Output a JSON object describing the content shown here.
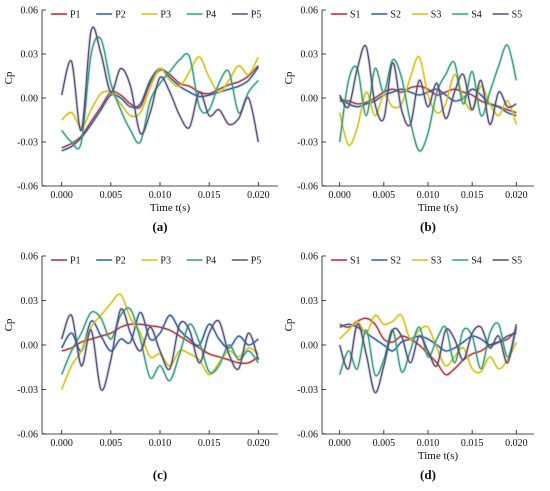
{
  "chart_data": [
    {
      "type": "line",
      "panel": "(a)",
      "xlabel": "Time t(s)",
      "ylabel": "Cp",
      "xlim": [
        -0.002,
        0.022
      ],
      "ylim": [
        -0.06,
        0.06
      ],
      "xticks": [
        "0.000",
        "0.005",
        "0.010",
        "0.015",
        "0.020"
      ],
      "yticks": [
        "0.06",
        "0.03",
        "0.00",
        "-0.03",
        "-0.06"
      ],
      "legend_position": "top",
      "x": [
        0.0,
        0.001,
        0.002,
        0.003,
        0.004,
        0.005,
        0.006,
        0.007,
        0.008,
        0.009,
        0.01,
        0.011,
        0.012,
        0.013,
        0.014,
        0.015,
        0.016,
        0.017,
        0.018,
        0.019,
        0.02
      ],
      "series": [
        {
          "name": "P1",
          "color": "#b5383c",
          "values": [
            -0.034,
            -0.031,
            -0.026,
            -0.016,
            -0.006,
            0.004,
            0.002,
            -0.004,
            -0.006,
            0.01,
            0.019,
            0.016,
            0.01,
            0.008,
            0.004,
            0.003,
            0.006,
            0.009,
            0.011,
            0.015,
            0.022
          ]
        },
        {
          "name": "P2",
          "color": "#2f5fa1",
          "values": [
            -0.036,
            -0.033,
            -0.027,
            -0.018,
            -0.008,
            0.002,
            0.0,
            -0.006,
            -0.004,
            0.012,
            0.02,
            0.014,
            0.008,
            0.004,
            0.001,
            0.002,
            0.004,
            0.006,
            0.008,
            0.012,
            0.021
          ]
        },
        {
          "name": "P3",
          "color": "#d4c21a",
          "values": [
            -0.015,
            -0.01,
            -0.02,
            -0.008,
            0.003,
            0.004,
            -0.004,
            -0.012,
            -0.01,
            0.007,
            0.02,
            0.012,
            0.008,
            0.018,
            0.028,
            0.014,
            0.004,
            0.012,
            0.022,
            0.016,
            0.028
          ]
        },
        {
          "name": "P4",
          "color": "#3a9f7d",
          "values": [
            -0.022,
            -0.03,
            -0.03,
            0.03,
            0.04,
            0.01,
            -0.008,
            -0.022,
            -0.03,
            -0.002,
            0.01,
            0.018,
            0.026,
            0.028,
            -0.006,
            -0.008,
            0.01,
            0.018,
            -0.01,
            0.004,
            0.012
          ]
        },
        {
          "name": "P5",
          "color": "#55507a",
          "values": [
            0.002,
            0.025,
            -0.022,
            0.046,
            0.03,
            0.004,
            0.02,
            0.008,
            -0.024,
            -0.01,
            0.014,
            0.004,
            -0.012,
            -0.02,
            0.004,
            -0.012,
            -0.008,
            -0.018,
            -0.014,
            0.0,
            -0.03
          ]
        }
      ]
    },
    {
      "type": "line",
      "panel": "(b)",
      "xlabel": "Time t(s)",
      "ylabel": "Cp",
      "xlim": [
        -0.002,
        0.022
      ],
      "ylim": [
        -0.06,
        0.06
      ],
      "xticks": [
        "0.000",
        "0.005",
        "0.010",
        "0.015",
        "0.020"
      ],
      "yticks": [
        "0.06",
        "0.03",
        "0.00",
        "-0.03",
        "-0.06"
      ],
      "legend_position": "top",
      "x": [
        0.0,
        0.001,
        0.002,
        0.003,
        0.004,
        0.005,
        0.006,
        0.007,
        0.008,
        0.009,
        0.01,
        0.011,
        0.012,
        0.013,
        0.014,
        0.015,
        0.016,
        0.017,
        0.018,
        0.019,
        0.02
      ],
      "series": [
        {
          "name": "S1",
          "color": "#b5383c",
          "values": [
            -0.002,
            -0.002,
            -0.004,
            -0.003,
            0.0,
            0.004,
            0.006,
            0.004,
            0.007,
            0.008,
            0.006,
            0.002,
            0.004,
            0.006,
            0.004,
            0.002,
            -0.002,
            -0.004,
            -0.006,
            -0.008,
            -0.01
          ]
        },
        {
          "name": "S2",
          "color": "#2f5fa1",
          "values": [
            0.0,
            -0.004,
            -0.006,
            -0.004,
            -0.002,
            0.002,
            0.004,
            0.006,
            0.004,
            0.002,
            0.004,
            0.006,
            0.002,
            -0.002,
            0.0,
            0.006,
            0.002,
            -0.004,
            -0.006,
            -0.01,
            -0.012
          ]
        },
        {
          "name": "S3",
          "color": "#d4c21a",
          "values": [
            -0.01,
            -0.032,
            -0.02,
            0.004,
            -0.012,
            0.002,
            -0.006,
            -0.004,
            0.014,
            0.028,
            0.002,
            -0.01,
            -0.004,
            0.016,
            0.0,
            -0.008,
            0.008,
            -0.004,
            -0.012,
            -0.002,
            -0.018
          ]
        },
        {
          "name": "S4",
          "color": "#3a9f7d",
          "values": [
            -0.03,
            0.012,
            0.02,
            -0.012,
            0.02,
            0.004,
            0.026,
            0.014,
            -0.016,
            -0.036,
            -0.024,
            0.004,
            0.016,
            0.024,
            -0.004,
            0.018,
            -0.012,
            0.004,
            0.022,
            0.036,
            0.012
          ]
        },
        {
          "name": "S5",
          "color": "#55507a",
          "values": [
            0.002,
            -0.006,
            0.02,
            0.035,
            -0.004,
            -0.014,
            0.024,
            -0.008,
            -0.018,
            0.012,
            -0.006,
            0.01,
            -0.014,
            0.004,
            0.016,
            -0.008,
            0.012,
            -0.018,
            0.004,
            -0.006,
            -0.004
          ]
        }
      ]
    },
    {
      "type": "line",
      "panel": "(c)",
      "xlabel": "",
      "ylabel": "Cp",
      "xlim": [
        -0.002,
        0.022
      ],
      "ylim": [
        -0.06,
        0.06
      ],
      "xticks": [
        "0.000",
        "0.005",
        "0.010",
        "0.015",
        "0.020"
      ],
      "yticks": [
        "0.06",
        "0.03",
        "0.00",
        "-0.03",
        "-0.06"
      ],
      "legend_position": "top",
      "x": [
        0.0,
        0.001,
        0.002,
        0.003,
        0.004,
        0.005,
        0.006,
        0.007,
        0.008,
        0.009,
        0.01,
        0.011,
        0.012,
        0.013,
        0.014,
        0.015,
        0.016,
        0.017,
        0.018,
        0.019,
        0.02
      ],
      "series": [
        {
          "name": "P1",
          "color": "#b5383c",
          "values": [
            -0.004,
            -0.002,
            0.002,
            0.004,
            0.006,
            0.008,
            0.012,
            0.014,
            0.014,
            0.013,
            0.012,
            0.01,
            0.006,
            0.002,
            -0.002,
            -0.006,
            -0.008,
            -0.01,
            -0.012,
            -0.012,
            -0.008
          ]
        },
        {
          "name": "P2",
          "color": "#2f5fa1",
          "values": [
            -0.002,
            0.008,
            -0.004,
            0.016,
            0.006,
            -0.004,
            0.004,
            0.002,
            0.022,
            0.004,
            0.008,
            0.02,
            0.01,
            0.004,
            0.0,
            0.014,
            0.004,
            -0.002,
            0.006,
            0.0,
            0.004
          ]
        },
        {
          "name": "P3",
          "color": "#d4c21a",
          "values": [
            -0.03,
            -0.014,
            -0.004,
            0.012,
            0.02,
            0.028,
            0.034,
            0.018,
            0.008,
            -0.008,
            -0.006,
            -0.014,
            -0.004,
            -0.006,
            -0.01,
            -0.02,
            -0.012,
            -0.004,
            -0.008,
            -0.002,
            -0.006
          ]
        },
        {
          "name": "P4",
          "color": "#3a9f7d",
          "values": [
            -0.02,
            -0.004,
            0.008,
            0.022,
            0.018,
            0.004,
            0.02,
            0.024,
            0.004,
            -0.022,
            -0.014,
            -0.024,
            -0.006,
            0.014,
            0.002,
            -0.018,
            -0.014,
            0.0,
            -0.01,
            -0.004,
            -0.012
          ]
        },
        {
          "name": "P5",
          "color": "#55507a",
          "values": [
            0.004,
            0.02,
            -0.014,
            0.01,
            -0.03,
            -0.01,
            0.024,
            0.008,
            -0.004,
            0.012,
            -0.004,
            -0.016,
            0.014,
            0.01,
            -0.012,
            0.008,
            0.016,
            -0.006,
            -0.016,
            0.008,
            -0.01
          ]
        }
      ]
    },
    {
      "type": "line",
      "panel": "(d)",
      "xlabel": "Time t(s)",
      "ylabel": "Cp",
      "xlim": [
        -0.002,
        0.022
      ],
      "ylim": [
        -0.06,
        0.06
      ],
      "xticks": [
        "0.000",
        "0.005",
        "0.010",
        "0.015",
        "0.020"
      ],
      "yticks": [
        "0.06",
        "0.03",
        "0.00",
        "-0.03",
        "-0.06"
      ],
      "legend_position": "top",
      "x": [
        0.0,
        0.001,
        0.002,
        0.003,
        0.004,
        0.005,
        0.006,
        0.007,
        0.008,
        0.009,
        0.01,
        0.011,
        0.012,
        0.013,
        0.014,
        0.015,
        0.016,
        0.017,
        0.018,
        0.019,
        0.02
      ],
      "series": [
        {
          "name": "S1",
          "color": "#b5383c",
          "values": [
            0.014,
            0.012,
            0.016,
            0.018,
            0.014,
            0.004,
            0.002,
            0.006,
            0.004,
            0.0,
            -0.006,
            -0.012,
            -0.02,
            -0.016,
            -0.01,
            -0.006,
            -0.004,
            0.0,
            0.002,
            0.004,
            0.01
          ]
        },
        {
          "name": "S2",
          "color": "#2f5fa1",
          "values": [
            0.012,
            0.014,
            0.012,
            0.008,
            0.004,
            0.0,
            -0.004,
            0.002,
            0.004,
            0.006,
            0.004,
            0.0,
            -0.004,
            -0.002,
            0.002,
            0.006,
            0.004,
            0.0,
            0.002,
            0.006,
            0.008
          ]
        },
        {
          "name": "S3",
          "color": "#d4c21a",
          "values": [
            0.004,
            0.01,
            0.016,
            0.008,
            0.02,
            0.014,
            0.016,
            0.02,
            0.004,
            0.01,
            0.012,
            -0.002,
            -0.014,
            -0.008,
            -0.002,
            -0.016,
            -0.018,
            -0.008,
            -0.016,
            -0.01,
            0.002
          ]
        },
        {
          "name": "S4",
          "color": "#3a9f7d",
          "values": [
            -0.02,
            -0.004,
            -0.016,
            0.01,
            -0.02,
            -0.01,
            0.01,
            -0.018,
            -0.004,
            0.012,
            -0.008,
            0.004,
            0.012,
            -0.012,
            0.01,
            0.006,
            -0.016,
            0.008,
            0.014,
            -0.008,
            0.012
          ]
        },
        {
          "name": "S5",
          "color": "#55507a",
          "values": [
            0.0,
            -0.016,
            0.014,
            -0.006,
            -0.032,
            -0.014,
            0.01,
            0.006,
            -0.012,
            0.006,
            -0.004,
            -0.014,
            0.01,
            0.004,
            -0.01,
            0.008,
            0.012,
            -0.002,
            0.006,
            -0.012,
            0.014
          ]
        }
      ]
    }
  ]
}
